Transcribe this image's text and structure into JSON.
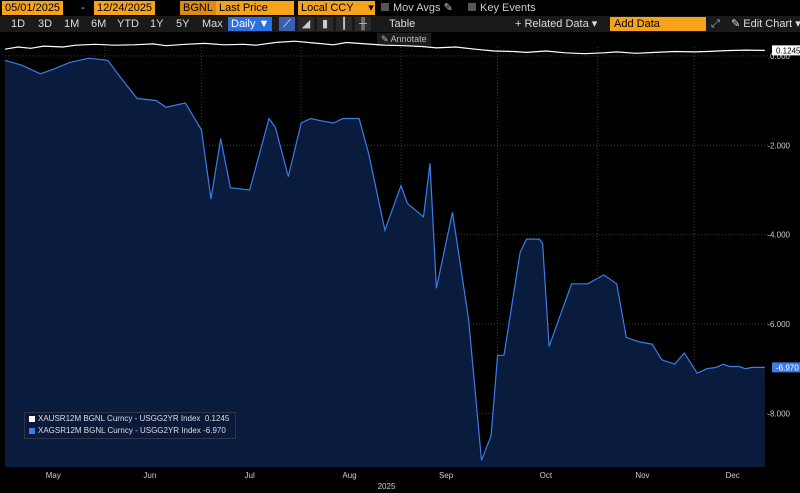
{
  "toolbar": {
    "start_date": "05/01/2025",
    "end_date": "12/24/2025",
    "source": "BGNL",
    "field": "Last Price",
    "currency": "Local CCY",
    "mov_avgs": "Mov Avgs",
    "key_events": "Key Events"
  },
  "toolbar2": {
    "periods": [
      "1D",
      "3D",
      "1M",
      "6M",
      "YTD",
      "1Y",
      "5Y",
      "Max"
    ],
    "frequency": "Daily ▼",
    "table": "Table",
    "related_data": "+ Related Data ▾",
    "add_data_placeholder": "Add Data",
    "edit_chart": "Edit Chart ▾",
    "annotate": "Annotate"
  },
  "chart_data": {
    "type": "line",
    "title": "",
    "xlabel": "2025",
    "ylabel": "",
    "x_ticks": [
      "May",
      "Jun",
      "Jul",
      "Aug",
      "Sep",
      "Oct",
      "Nov",
      "Dec"
    ],
    "y_ticks": [
      "0.000",
      "-2.000",
      "-4.000",
      "-6.000",
      "-8.000"
    ],
    "ylim": [
      -9.2,
      0.2
    ],
    "xlim": [
      "2025-05-01",
      "2025-12-24"
    ],
    "grid": true,
    "legend_position": "bottom-left",
    "series": [
      {
        "name": "XAUSR12M BGNL Curncy - USGG2YR Index",
        "last_label": "0.1245",
        "color": "#ffffff",
        "fill": false,
        "x": [
          "2025-05-01",
          "2025-05-05",
          "2025-05-09",
          "2025-05-13",
          "2025-05-19",
          "2025-05-23",
          "2025-05-29",
          "2025-06-04",
          "2025-06-10",
          "2025-06-16",
          "2025-06-20",
          "2025-06-26",
          "2025-07-02",
          "2025-07-08",
          "2025-07-14",
          "2025-07-18",
          "2025-07-24",
          "2025-07-30",
          "2025-08-05",
          "2025-08-11",
          "2025-08-15",
          "2025-08-21",
          "2025-08-27",
          "2025-09-02",
          "2025-09-08",
          "2025-09-12",
          "2025-09-18",
          "2025-09-24",
          "2025-09-30",
          "2025-10-06",
          "2025-10-10",
          "2025-10-16",
          "2025-10-22",
          "2025-10-28",
          "2025-11-03",
          "2025-11-07",
          "2025-11-13",
          "2025-11-19",
          "2025-11-25",
          "2025-12-01",
          "2025-12-05",
          "2025-12-11",
          "2025-12-17",
          "2025-12-23"
        ],
        "values": [
          0.15,
          0.2,
          0.17,
          0.22,
          0.2,
          0.24,
          0.26,
          0.24,
          0.25,
          0.27,
          0.23,
          0.26,
          0.28,
          0.25,
          0.26,
          0.24,
          0.3,
          0.33,
          0.29,
          0.25,
          0.3,
          0.27,
          0.24,
          0.23,
          0.21,
          0.18,
          0.2,
          0.15,
          0.11,
          0.1,
          0.08,
          0.11,
          0.07,
          0.05,
          0.07,
          0.09,
          0.06,
          0.08,
          0.1,
          0.09,
          0.1,
          0.12,
          0.13,
          0.1245
        ]
      },
      {
        "name": "XAGSR12M BGNL Curncy - USGG2YR Index",
        "last_label": "-6.970",
        "color": "#3d7be6",
        "fill": true,
        "x": [
          "2025-05-01",
          "2025-05-06",
          "2025-05-12",
          "2025-05-16",
          "2025-05-21",
          "2025-05-27",
          "2025-06-02",
          "2025-06-05",
          "2025-06-11",
          "2025-06-17",
          "2025-06-20",
          "2025-06-26",
          "2025-07-01",
          "2025-07-04",
          "2025-07-07",
          "2025-07-10",
          "2025-07-16",
          "2025-07-22",
          "2025-07-24",
          "2025-07-28",
          "2025-08-01",
          "2025-08-04",
          "2025-08-07",
          "2025-08-11",
          "2025-08-14",
          "2025-08-19",
          "2025-08-22",
          "2025-08-27",
          "2025-09-01",
          "2025-09-03",
          "2025-09-08",
          "2025-09-10",
          "2025-09-12",
          "2025-09-17",
          "2025-09-22",
          "2025-09-26",
          "2025-09-29",
          "2025-10-01",
          "2025-10-03",
          "2025-10-08",
          "2025-10-10",
          "2025-10-14",
          "2025-10-15",
          "2025-10-17",
          "2025-10-21",
          "2025-10-24",
          "2025-10-29",
          "2025-11-03",
          "2025-11-07",
          "2025-11-10",
          "2025-11-14",
          "2025-11-18",
          "2025-11-21",
          "2025-11-25",
          "2025-11-28",
          "2025-12-02",
          "2025-12-05",
          "2025-12-08",
          "2025-12-10",
          "2025-12-12",
          "2025-12-15",
          "2025-12-17",
          "2025-12-19",
          "2025-12-23"
        ],
        "values": [
          -0.1,
          -0.2,
          -0.4,
          -0.3,
          -0.15,
          -0.05,
          -0.1,
          -0.4,
          -0.95,
          -1.0,
          -1.15,
          -1.05,
          -1.65,
          -3.2,
          -1.85,
          -2.95,
          -3.0,
          -1.4,
          -1.6,
          -2.7,
          -1.5,
          -1.4,
          -1.45,
          -1.5,
          -1.4,
          -1.4,
          -2.2,
          -3.9,
          -2.9,
          -3.3,
          -3.6,
          -2.4,
          -5.2,
          -3.5,
          -5.9,
          -9.05,
          -8.5,
          -6.7,
          -6.7,
          -4.4,
          -4.1,
          -4.1,
          -4.2,
          -6.5,
          -5.7,
          -5.1,
          -5.1,
          -4.9,
          -5.1,
          -6.3,
          -6.4,
          -6.45,
          -6.8,
          -6.9,
          -6.65,
          -7.1,
          -7.0,
          -6.97,
          -6.9,
          -6.95,
          -6.95,
          -7.0,
          -6.97,
          -6.97
        ]
      }
    ]
  }
}
